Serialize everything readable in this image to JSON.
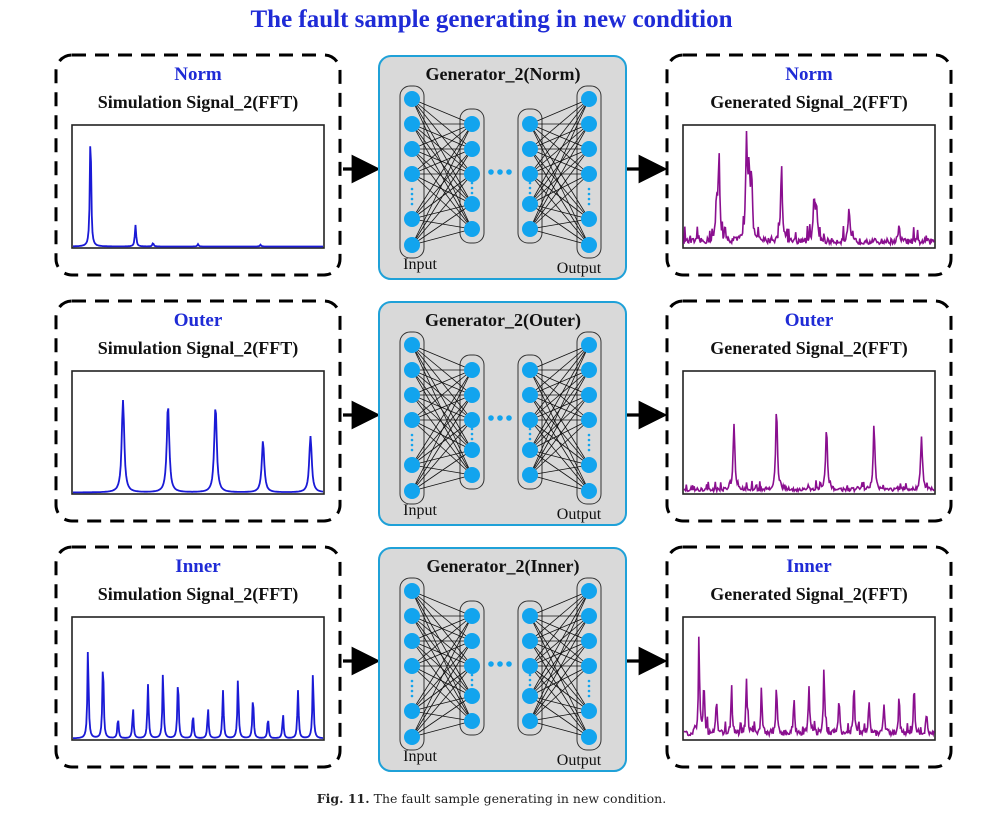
{
  "title": "The fault sample generating in new condition",
  "caption": {
    "label": "Fig. 11.",
    "text": "The fault sample generating in new condition."
  },
  "colors": {
    "sim_signal": "#1a1ad6",
    "gen_signal": "#8a0f8f",
    "condition_label": "#1f2bd6",
    "node": "#12a4ee",
    "generator_fill": "#d9d9d9",
    "generator_border": "#1fa1d8"
  },
  "rows": [
    {
      "condition": "Norm",
      "sim_title": "Simulation Signal_2(FFT)",
      "generator_title": "Generator_2(Norm)",
      "gen_title": "Generated Signal_2(FFT)",
      "input_label": "Input",
      "output_label": "Output"
    },
    {
      "condition": "Outer",
      "sim_title": "Simulation Signal_2(FFT)",
      "generator_title": "Generator_2(Outer)",
      "gen_title": "Generated Signal_2(FFT)",
      "input_label": "Input",
      "output_label": "Output"
    },
    {
      "condition": "Inner",
      "sim_title": "Simulation Signal_2(FFT)",
      "generator_title": "Generator_2(Inner)",
      "gen_title": "Generated Signal_2(FFT)",
      "input_label": "Input",
      "output_label": "Output"
    }
  ],
  "signals": {
    "norm_sim": [
      [
        0.07,
        0.98
      ],
      [
        0.25,
        0.18
      ],
      [
        0.32,
        0.03
      ],
      [
        0.5,
        0.02
      ],
      [
        0.75,
        0.015
      ]
    ],
    "outer_sim": [
      [
        0.2,
        0.77
      ],
      [
        0.38,
        0.73
      ],
      [
        0.57,
        0.72
      ],
      [
        0.76,
        0.43
      ],
      [
        0.95,
        0.47
      ]
    ],
    "inner_sim": [
      [
        0.06,
        0.75
      ],
      [
        0.12,
        0.65
      ],
      [
        0.18,
        0.17
      ],
      [
        0.24,
        0.25
      ],
      [
        0.3,
        0.45
      ],
      [
        0.36,
        0.55
      ],
      [
        0.42,
        0.5
      ],
      [
        0.48,
        0.2
      ],
      [
        0.54,
        0.25
      ],
      [
        0.6,
        0.4
      ],
      [
        0.66,
        0.5
      ],
      [
        0.72,
        0.35
      ],
      [
        0.78,
        0.17
      ],
      [
        0.84,
        0.2
      ],
      [
        0.9,
        0.4
      ],
      [
        0.96,
        0.55
      ]
    ],
    "norm_gen": [
      [
        0.14,
        0.7
      ],
      [
        0.13,
        0.3
      ],
      [
        0.25,
        0.82
      ],
      [
        0.26,
        0.55
      ],
      [
        0.27,
        0.48
      ],
      [
        0.39,
        0.65
      ],
      [
        0.52,
        0.33
      ],
      [
        0.53,
        0.3
      ],
      [
        0.66,
        0.27
      ],
      [
        0.86,
        0.12
      ]
    ],
    "outer_gen": [
      [
        0.2,
        0.55
      ],
      [
        0.37,
        0.68
      ],
      [
        0.57,
        0.52
      ],
      [
        0.76,
        0.55
      ],
      [
        0.95,
        0.45
      ]
    ],
    "inner_gen": [
      [
        0.06,
        0.78
      ],
      [
        0.08,
        0.4
      ],
      [
        0.13,
        0.3
      ],
      [
        0.19,
        0.35
      ],
      [
        0.25,
        0.45
      ],
      [
        0.31,
        0.38
      ],
      [
        0.37,
        0.4
      ],
      [
        0.44,
        0.3
      ],
      [
        0.5,
        0.4
      ],
      [
        0.56,
        0.55
      ],
      [
        0.62,
        0.3
      ],
      [
        0.68,
        0.4
      ],
      [
        0.74,
        0.28
      ],
      [
        0.8,
        0.25
      ],
      [
        0.86,
        0.3
      ],
      [
        0.92,
        0.35
      ],
      [
        0.97,
        0.18
      ]
    ]
  }
}
